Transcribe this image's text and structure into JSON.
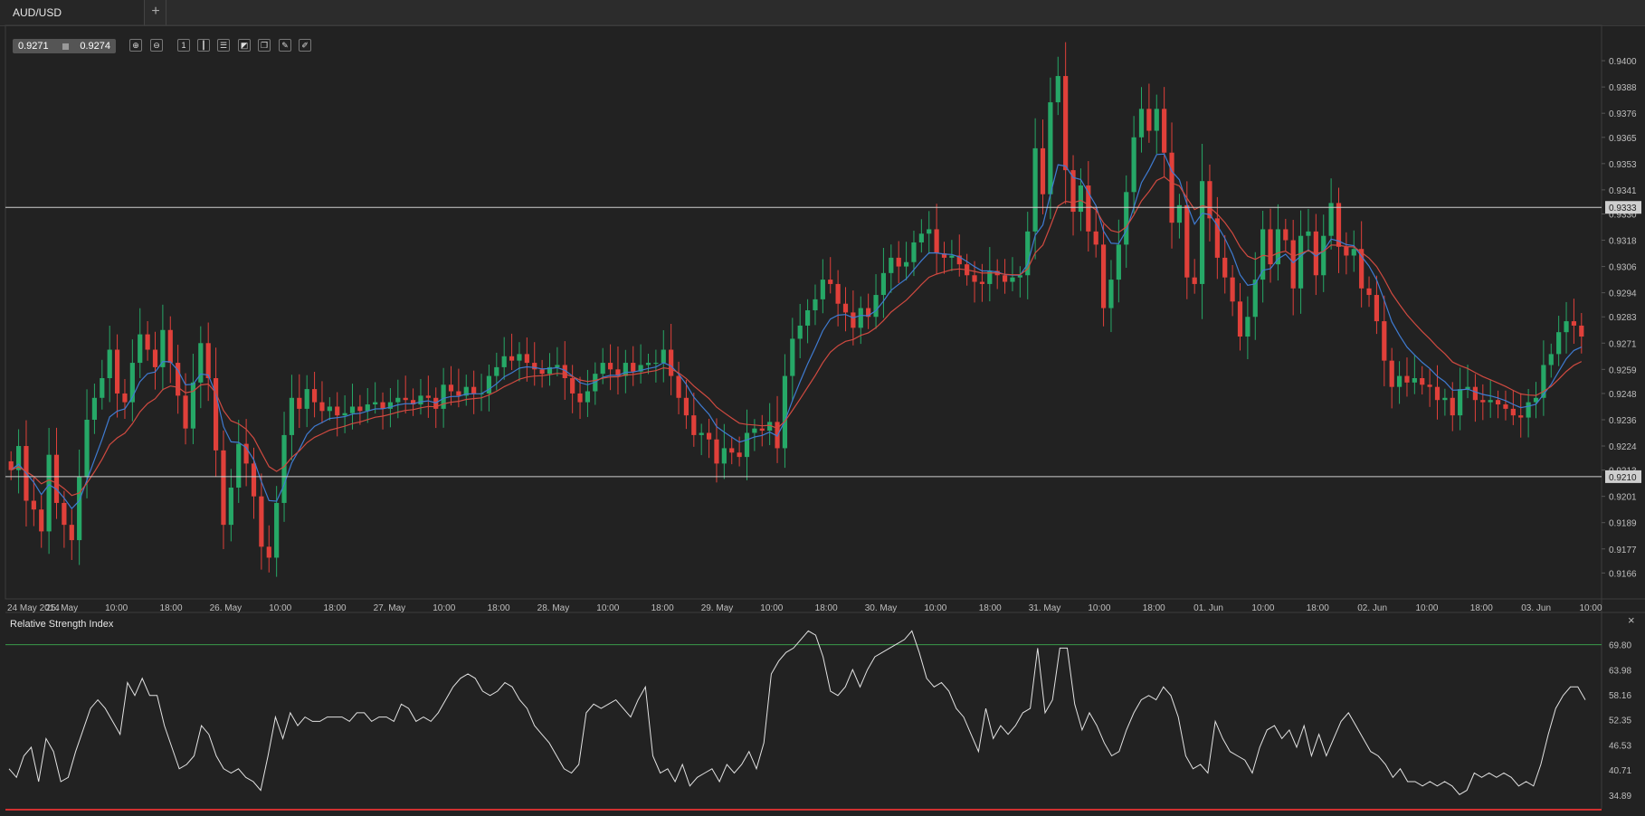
{
  "tab": {
    "label": "AUD/USD",
    "add_label": "+"
  },
  "quote": {
    "bid": "0.9271",
    "ask": "0.9274"
  },
  "toolbar": {
    "icons": [
      "zoom-in-icon",
      "zoom-out-icon",
      "timeframe-icon",
      "candles-icon",
      "indicators-icon",
      "chart-type-icon",
      "layers-icon",
      "edit-icon",
      "draw-icon"
    ],
    "timeframe_label": "1"
  },
  "rsi": {
    "title": "Relative Strength Index",
    "close_label": "×"
  },
  "colors": {
    "bg": "#222222",
    "bull": "#26a867",
    "bear": "#e0403a",
    "ema_fast": "#3f7bd1",
    "ema_slow": "#d04a40",
    "grid": "#3a3a3a",
    "text": "#bfbfbf",
    "line": "#e2e2e2",
    "rsi_upper": "#3a9a4a",
    "rsi_lower": "#d03030"
  },
  "chart_data": [
    {
      "type": "candlestick",
      "ylim": [
        0.9155,
        0.9405
      ],
      "y_ticks": [
        "0.9400",
        "0.9388",
        "0.9376",
        "0.9365",
        "0.9353",
        "0.9341",
        "0.9330",
        "0.9318",
        "0.9306",
        "0.9294",
        "0.9283",
        "0.9271",
        "0.9259",
        "0.9248",
        "0.9236",
        "0.9224",
        "0.9213",
        "0.9201",
        "0.9189",
        "0.9177",
        "0.9166"
      ],
      "x_labels": [
        "24 May 2014",
        "25. May",
        "10:00",
        "18:00",
        "26. May",
        "10:00",
        "18:00",
        "27. May",
        "10:00",
        "18:00",
        "28. May",
        "10:00",
        "18:00",
        "29. May",
        "10:00",
        "18:00",
        "30. May",
        "10:00",
        "18:00",
        "31. May",
        "10:00",
        "18:00",
        "01. Jun",
        "10:00",
        "18:00",
        "02. Jun",
        "10:00",
        "18:00",
        "03. Jun",
        "10:00"
      ],
      "horizontal_lines": [
        {
          "value": 0.9333,
          "label": "0.9333"
        },
        {
          "value": 0.921,
          "label": "0.9210"
        }
      ],
      "close_series": [
        0.9213,
        0.9224,
        0.9199,
        0.9195,
        0.9185,
        0.922,
        0.9198,
        0.9188,
        0.9181,
        0.921,
        0.9236,
        0.9246,
        0.9255,
        0.9268,
        0.9248,
        0.9244,
        0.9262,
        0.9275,
        0.9268,
        0.926,
        0.9277,
        0.9262,
        0.9247,
        0.9232,
        0.9253,
        0.9271,
        0.9255,
        0.9222,
        0.9188,
        0.9205,
        0.9225,
        0.9216,
        0.9201,
        0.9178,
        0.9173,
        0.9198,
        0.9229,
        0.9246,
        0.9241,
        0.925,
        0.9244,
        0.924,
        0.9242,
        0.9238,
        0.9239,
        0.9242,
        0.924,
        0.9243,
        0.9244,
        0.9241,
        0.9244,
        0.9246,
        0.9245,
        0.9243,
        0.9247,
        0.9246,
        0.9241,
        0.9252,
        0.9249,
        0.9247,
        0.9251,
        0.9248,
        0.9248,
        0.9256,
        0.926,
        0.9265,
        0.9263,
        0.9266,
        0.9262,
        0.9259,
        0.9257,
        0.926,
        0.9261,
        0.9255,
        0.9248,
        0.9244,
        0.9249,
        0.9257,
        0.9262,
        0.9259,
        0.9256,
        0.9262,
        0.9258,
        0.9261,
        0.9262,
        0.9262,
        0.9268,
        0.9256,
        0.9246,
        0.9238,
        0.9229,
        0.923,
        0.9227,
        0.9216,
        0.9223,
        0.9221,
        0.9219,
        0.923,
        0.9232,
        0.9231,
        0.9235,
        0.9223,
        0.9256,
        0.9273,
        0.9279,
        0.9286,
        0.9291,
        0.93,
        0.9298,
        0.9289,
        0.9285,
        0.9278,
        0.9287,
        0.9283,
        0.9293,
        0.9303,
        0.931,
        0.9306,
        0.9308,
        0.9317,
        0.9321,
        0.9323,
        0.9312,
        0.931,
        0.9311,
        0.9307,
        0.9302,
        0.9299,
        0.9298,
        0.9304,
        0.9302,
        0.9299,
        0.9301,
        0.9302,
        0.9322,
        0.936,
        0.9339,
        0.9381,
        0.9393,
        0.935,
        0.9331,
        0.9343,
        0.9322,
        0.9316,
        0.9287,
        0.93,
        0.9316,
        0.934,
        0.9365,
        0.9378,
        0.9368,
        0.9378,
        0.9358,
        0.9326,
        0.9334,
        0.9301,
        0.9298,
        0.9345,
        0.9328,
        0.931,
        0.9301,
        0.929,
        0.9274,
        0.9283,
        0.93,
        0.9323,
        0.9307,
        0.9323,
        0.9318,
        0.9296,
        0.932,
        0.9322,
        0.9302,
        0.932,
        0.9335,
        0.9315,
        0.9311,
        0.9314,
        0.9296,
        0.9293,
        0.9281,
        0.9263,
        0.9251,
        0.9256,
        0.9253,
        0.9255,
        0.9252,
        0.9251,
        0.9245,
        0.9246,
        0.9238,
        0.925,
        0.9251,
        0.9245,
        0.9244,
        0.9245,
        0.9243,
        0.9241,
        0.9238,
        0.9237,
        0.9244,
        0.9246,
        0.9261,
        0.9266,
        0.9276,
        0.9281,
        0.9279,
        0.9274
      ],
      "series": [
        {
          "name": "EMA fast",
          "color": "#3f7bd1"
        },
        {
          "name": "EMA slow",
          "color": "#d04a40"
        }
      ]
    },
    {
      "type": "line",
      "title": "Relative Strength Index",
      "ylim": [
        31.5,
        73.5
      ],
      "y_ticks": [
        "69.80",
        "63.98",
        "58.16",
        "52.35",
        "46.53",
        "40.71",
        "34.89"
      ],
      "levels": [
        69.8,
        30.0
      ],
      "values": [
        41,
        39,
        44,
        46,
        38,
        48,
        45,
        38,
        39,
        45,
        50,
        55,
        57,
        55,
        52,
        49,
        61,
        58,
        62,
        58,
        58,
        51,
        46,
        41,
        42,
        44,
        51,
        49,
        44,
        41,
        40,
        41,
        39,
        38,
        36,
        44,
        53,
        48,
        54,
        51,
        53,
        52,
        52,
        53,
        53,
        53,
        52,
        54,
        54,
        52,
        53,
        53,
        52,
        56,
        55,
        52,
        53,
        52,
        54,
        57,
        60,
        62,
        63,
        62,
        59,
        58,
        59,
        61,
        60,
        57,
        55,
        51,
        49,
        47,
        44,
        41,
        40,
        42,
        54,
        56,
        55,
        56,
        57,
        55,
        53,
        57,
        60,
        44,
        40,
        41,
        38,
        42,
        37,
        39,
        40,
        41,
        38,
        42,
        40,
        42,
        45,
        41,
        47,
        63,
        66,
        68,
        69,
        71,
        73,
        72,
        67,
        59,
        58,
        60,
        64,
        60,
        64,
        67,
        68,
        69,
        70,
        71,
        73,
        68,
        62,
        60,
        61,
        59,
        55,
        53,
        49,
        45,
        55,
        48,
        51,
        49,
        51,
        54,
        55,
        69,
        54,
        57,
        69,
        69,
        56,
        50,
        54,
        51,
        47,
        44,
        45,
        50,
        54,
        57,
        58,
        57,
        60,
        58,
        53,
        44,
        41,
        42,
        40,
        52,
        48,
        45,
        44,
        43,
        40,
        46,
        50,
        51,
        48,
        50,
        46,
        51,
        44,
        49,
        44,
        48,
        52,
        54,
        51,
        48,
        45,
        44,
        42,
        39,
        41,
        38,
        38,
        37,
        38,
        37,
        38,
        37,
        35,
        36,
        40,
        39,
        40,
        39,
        40,
        39,
        37,
        38,
        37,
        42,
        49,
        55,
        58,
        60,
        60,
        57
      ]
    }
  ]
}
